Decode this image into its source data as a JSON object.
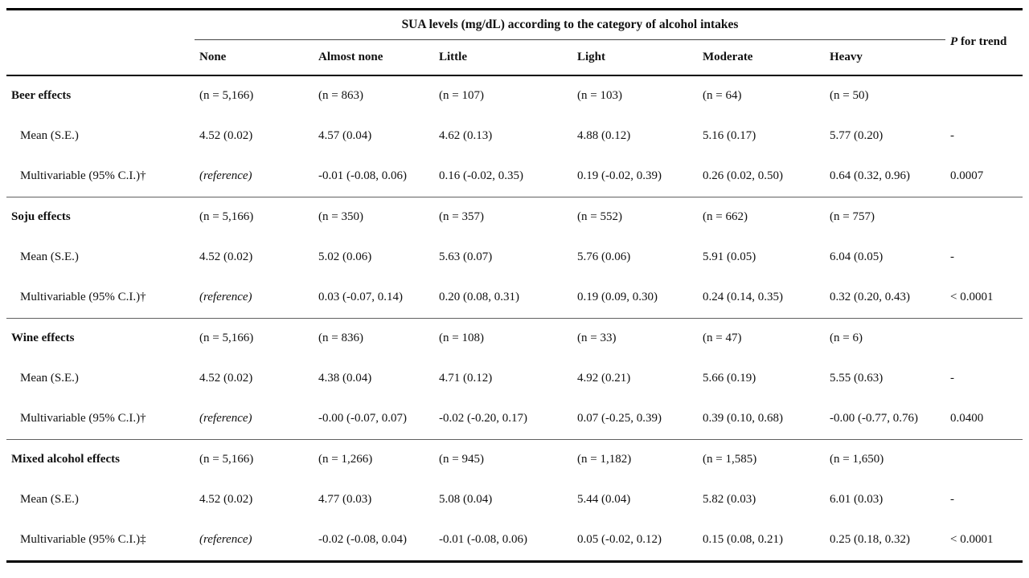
{
  "table": {
    "spanner": "SUA levels (mg/dL) according to the category of alcohol intakes",
    "p_header": {
      "symbol": "P",
      "rest": " for trend"
    },
    "columns": [
      "None",
      "Almost none",
      "Little",
      "Light",
      "Moderate",
      "Heavy"
    ],
    "reference_style_match": "(reference)",
    "groups": [
      {
        "title": "Beer effects",
        "counts": [
          "(n = 5,166)",
          "(n = 863)",
          "(n = 107)",
          "(n = 103)",
          "(n = 64)",
          "(n = 50)"
        ],
        "counts_p": "",
        "rows": [
          {
            "label": "Mean (S.E.)",
            "cells": [
              "4.52 (0.02)",
              "4.57 (0.04)",
              "4.62 (0.13)",
              "4.88 (0.12)",
              "5.16 (0.17)",
              "5.77 (0.20)"
            ],
            "p": "-"
          },
          {
            "label": "Multivariable (95% C.I.)†",
            "cells": [
              "(reference)",
              "-0.01 (-0.08, 0.06)",
              "0.16 (-0.02, 0.35)",
              "0.19 (-0.02, 0.39)",
              "0.26 (0.02, 0.50)",
              "0.64 (0.32, 0.96)"
            ],
            "p": "0.0007"
          }
        ]
      },
      {
        "title": "Soju effects",
        "counts": [
          "(n = 5,166)",
          "(n = 350)",
          "(n = 357)",
          "(n = 552)",
          "(n = 662)",
          "(n = 757)"
        ],
        "counts_p": "",
        "rows": [
          {
            "label": "Mean (S.E.)",
            "cells": [
              "4.52 (0.02)",
              "5.02 (0.06)",
              "5.63 (0.07)",
              "5.76 (0.06)",
              "5.91 (0.05)",
              "6.04 (0.05)"
            ],
            "p": "-"
          },
          {
            "label": "Multivariable (95% C.I.)†",
            "cells": [
              "(reference)",
              "0.03 (-0.07, 0.14)",
              "0.20 (0.08, 0.31)",
              "0.19 (0.09, 0.30)",
              "0.24 (0.14, 0.35)",
              "0.32 (0.20, 0.43)"
            ],
            "p": "< 0.0001"
          }
        ]
      },
      {
        "title": "Wine effects",
        "counts": [
          "(n = 5,166)",
          "(n = 836)",
          "(n = 108)",
          "(n = 33)",
          "(n = 47)",
          "(n = 6)"
        ],
        "counts_p": "",
        "rows": [
          {
            "label": "Mean (S.E.)",
            "cells": [
              "4.52 (0.02)",
              "4.38 (0.04)",
              "4.71 (0.12)",
              "4.92 (0.21)",
              "5.66 (0.19)",
              "5.55 (0.63)"
            ],
            "p": "-"
          },
          {
            "label": "Multivariable (95% C.I.)†",
            "cells": [
              "(reference)",
              "-0.00 (-0.07, 0.07)",
              "-0.02 (-0.20, 0.17)",
              "0.07 (-0.25, 0.39)",
              "0.39 (0.10, 0.68)",
              "-0.00 (-0.77, 0.76)"
            ],
            "p": "0.0400"
          }
        ]
      },
      {
        "title": "Mixed alcohol effects",
        "counts": [
          "(n = 5,166)",
          "(n = 1,266)",
          "(n = 945)",
          "(n = 1,182)",
          "(n = 1,585)",
          "(n = 1,650)"
        ],
        "counts_p": "",
        "rows": [
          {
            "label": "Mean (S.E.)",
            "cells": [
              "4.52 (0.02)",
              "4.77 (0.03)",
              "5.08 (0.04)",
              "5.44 (0.04)",
              "5.82 (0.03)",
              "6.01 (0.03)"
            ],
            "p": "-"
          },
          {
            "label": "Multivariable (95% C.I.)‡",
            "cells": [
              "(reference)",
              "-0.02 (-0.08, 0.04)",
              "-0.01 (-0.08, 0.06)",
              "0.05 (-0.02, 0.12)",
              "0.15 (0.08, 0.21)",
              "0.25 (0.18, 0.32)"
            ],
            "p": "< 0.0001"
          }
        ]
      }
    ]
  }
}
